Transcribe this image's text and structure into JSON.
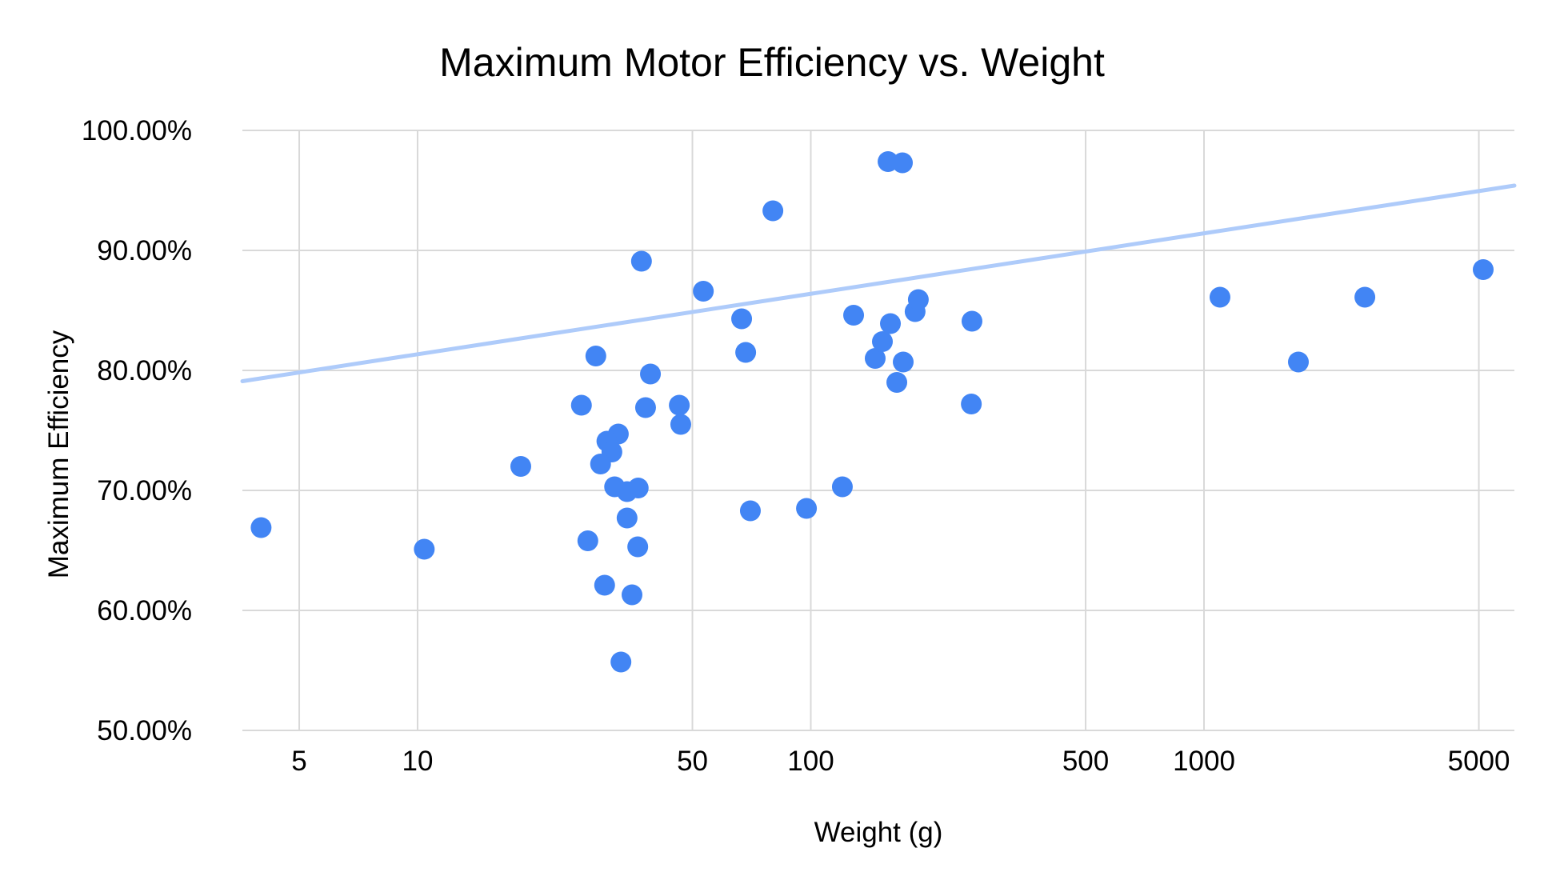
{
  "chart_data": {
    "type": "scatter",
    "title": "Maximum Motor Efficiency vs. Weight",
    "xlabel": "Weight (g)",
    "ylabel": "Maximum Efficiency",
    "x_scale": "log",
    "grid": true,
    "legend_position": "none",
    "x_range": [
      3.585,
      6157
    ],
    "y_range": [
      50,
      100
    ],
    "x_ticks": [
      {
        "value": 5,
        "label": "5"
      },
      {
        "value": 10,
        "label": "10"
      },
      {
        "value": 50,
        "label": "50"
      },
      {
        "value": 100,
        "label": "100"
      },
      {
        "value": 500,
        "label": "500"
      },
      {
        "value": 1000,
        "label": "1000"
      },
      {
        "value": 5000,
        "label": "5000"
      }
    ],
    "y_ticks": [
      {
        "value": 50,
        "label": "50.00%"
      },
      {
        "value": 60,
        "label": "60.00%"
      },
      {
        "value": 70,
        "label": "70.00%"
      },
      {
        "value": 80,
        "label": "80.00%"
      },
      {
        "value": 90,
        "label": "90.00%"
      },
      {
        "value": 100,
        "label": "100.00%"
      }
    ],
    "points": [
      [
        4.0,
        66.9
      ],
      [
        10.4,
        65.1
      ],
      [
        18.3,
        72.0
      ],
      [
        26.1,
        77.1
      ],
      [
        28.4,
        81.2
      ],
      [
        37.1,
        89.1
      ],
      [
        38.0,
        76.9
      ],
      [
        39.1,
        79.7
      ],
      [
        46.3,
        77.1
      ],
      [
        46.7,
        75.5
      ],
      [
        32.4,
        74.7
      ],
      [
        30.3,
        74.1
      ],
      [
        31.2,
        73.2
      ],
      [
        29.2,
        72.2
      ],
      [
        31.7,
        70.3
      ],
      [
        34.1,
        69.9
      ],
      [
        36.4,
        70.2
      ],
      [
        34.1,
        67.7
      ],
      [
        27.1,
        65.8
      ],
      [
        36.3,
        65.3
      ],
      [
        29.9,
        62.1
      ],
      [
        35.1,
        61.3
      ],
      [
        32.9,
        55.7
      ],
      [
        53.3,
        86.6
      ],
      [
        66.7,
        84.3
      ],
      [
        68.3,
        81.5
      ],
      [
        70.2,
        68.3
      ],
      [
        80.1,
        93.3
      ],
      [
        97.5,
        68.5
      ],
      [
        120.3,
        70.3
      ],
      [
        128.5,
        84.6
      ],
      [
        145.8,
        81.0
      ],
      [
        152.1,
        82.4
      ],
      [
        157.2,
        97.4
      ],
      [
        159.4,
        83.9
      ],
      [
        165.5,
        79.0
      ],
      [
        171.0,
        97.3
      ],
      [
        171.8,
        80.7
      ],
      [
        184.2,
        84.9
      ],
      [
        187.7,
        85.9
      ],
      [
        256,
        77.2
      ],
      [
        257,
        84.1
      ],
      [
        1098,
        86.1
      ],
      [
        1738,
        80.7
      ],
      [
        2565,
        86.1
      ],
      [
        5129,
        88.4
      ]
    ],
    "trendline": {
      "type": "linear",
      "efficiency_at_left_edge": 79.1,
      "efficiency_at_right_edge": 95.4
    },
    "colors": {
      "point": "#4285F4",
      "trendline": "#AECBFA",
      "gridline": "#D9D9D9",
      "text": "#000000",
      "background": "#FFFFFF"
    }
  }
}
